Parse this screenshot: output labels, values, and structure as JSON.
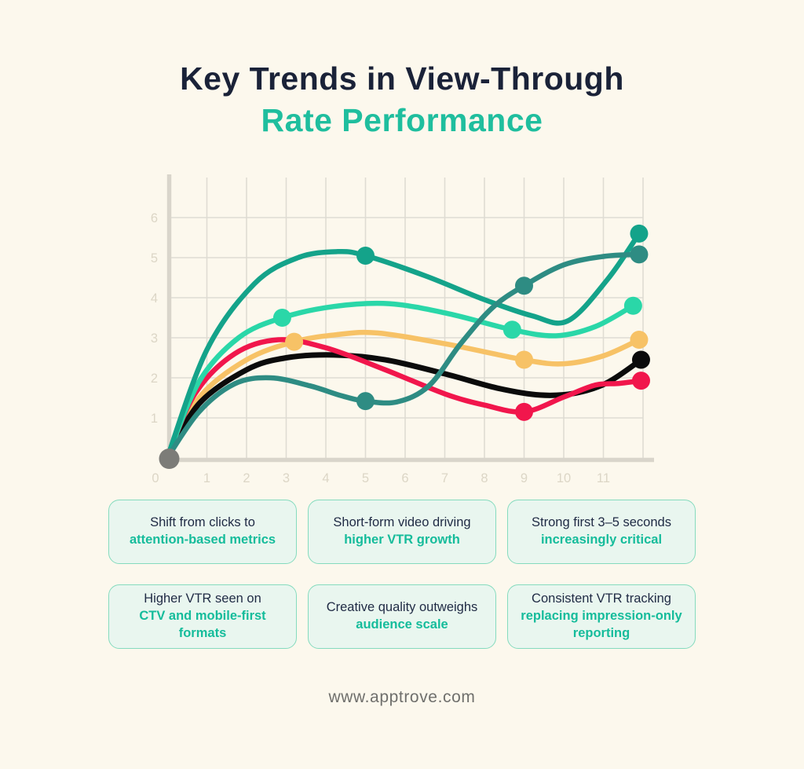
{
  "page": {
    "background": "#FCF8ED"
  },
  "title": {
    "line1": "Key Trends in View-Through",
    "line2": "Rate Performance",
    "line1_color": "#1A2238",
    "line2_color": "#1FBE9E"
  },
  "cards": [
    {
      "normal": "Shift from clicks to",
      "highlight": "attention-based metrics"
    },
    {
      "normal": "Short-form video driving",
      "highlight": "higher VTR growth"
    },
    {
      "normal": "Strong first 3–5 seconds",
      "highlight": "increasingly critical"
    },
    {
      "normal": "Higher VTR seen on",
      "highlight": "CTV and mobile-first formats"
    },
    {
      "normal": "Creative quality outweighs",
      "highlight": "audience scale"
    },
    {
      "normal": "Consistent VTR tracking",
      "highlight": "replacing impression-only reporting"
    }
  ],
  "card_style": {
    "bg": "#E9F6EF",
    "border": "#85DBBE",
    "normal_color": "#1F2A44",
    "highlight_color": "#15BC9B"
  },
  "footer": {
    "url": "www.apptrove.com",
    "color": "#6F6F6C"
  },
  "chart_data": {
    "type": "line",
    "title": "",
    "xlabel": "",
    "ylabel": "",
    "x_ticks": [
      "0",
      "1",
      "2",
      "3",
      "4",
      "5",
      "6",
      "7",
      "8",
      "9",
      "10",
      "11"
    ],
    "y_ticks": [
      "1",
      "2",
      "3",
      "4",
      "5",
      "6"
    ],
    "x_range": [
      0,
      12.2
    ],
    "y_range": [
      0,
      7
    ],
    "grid": true,
    "legend": "none",
    "axis_color": "#D9D5CB",
    "grid_color": "#DFDCD3",
    "tick_color": "#DCD6C6",
    "origin_marker": {
      "x": 0,
      "y": 0,
      "color": "#7C7C78"
    },
    "series": [
      {
        "name": "amber",
        "color": "#F7C266",
        "width": 6.5,
        "points": [
          [
            0,
            0
          ],
          [
            0.8,
            1.5
          ],
          [
            2,
            2.45
          ],
          [
            3.2,
            2.9
          ],
          [
            4.3,
            3.08
          ],
          [
            5.3,
            3.12
          ],
          [
            7,
            2.85
          ],
          [
            9,
            2.45
          ],
          [
            10,
            2.35
          ],
          [
            11,
            2.55
          ],
          [
            11.9,
            2.95
          ]
        ],
        "markers": [
          [
            3.2,
            2.9
          ],
          [
            9,
            2.45
          ],
          [
            11.9,
            2.95
          ]
        ]
      },
      {
        "name": "black",
        "color": "#0B0B0B",
        "width": 7,
        "points": [
          [
            0,
            0
          ],
          [
            0.8,
            1.35
          ],
          [
            2,
            2.2
          ],
          [
            3,
            2.5
          ],
          [
            4.2,
            2.57
          ],
          [
            5.5,
            2.45
          ],
          [
            7,
            2.1
          ],
          [
            8.3,
            1.75
          ],
          [
            9.4,
            1.57
          ],
          [
            10.3,
            1.62
          ],
          [
            11.1,
            1.88
          ],
          [
            11.95,
            2.45
          ]
        ],
        "markers": [
          [
            11.95,
            2.45
          ]
        ]
      },
      {
        "name": "crimson",
        "color": "#F1164C",
        "width": 6.5,
        "points": [
          [
            0,
            0
          ],
          [
            0.7,
            1.6
          ],
          [
            1.7,
            2.6
          ],
          [
            2.8,
            2.95
          ],
          [
            4,
            2.75
          ],
          [
            5.5,
            2.2
          ],
          [
            7,
            1.6
          ],
          [
            8,
            1.32
          ],
          [
            9,
            1.15
          ],
          [
            10,
            1.52
          ],
          [
            10.8,
            1.82
          ],
          [
            11.4,
            1.86
          ],
          [
            11.95,
            1.93
          ]
        ],
        "markers": [
          [
            9,
            1.15
          ],
          [
            11.95,
            1.93
          ]
        ]
      },
      {
        "name": "mint",
        "color": "#2AD7A8",
        "width": 6.5,
        "points": [
          [
            0,
            0
          ],
          [
            0.8,
            1.9
          ],
          [
            1.8,
            3.0
          ],
          [
            2.9,
            3.5
          ],
          [
            4.2,
            3.78
          ],
          [
            5.6,
            3.85
          ],
          [
            7.1,
            3.6
          ],
          [
            8.7,
            3.2
          ],
          [
            9.8,
            3.05
          ],
          [
            10.8,
            3.28
          ],
          [
            11.75,
            3.8
          ]
        ],
        "markers": [
          [
            2.9,
            3.5
          ],
          [
            8.7,
            3.2
          ],
          [
            11.75,
            3.8
          ]
        ]
      },
      {
        "name": "green",
        "color": "#14A38A",
        "width": 6.5,
        "points": [
          [
            0,
            0
          ],
          [
            1,
            2.7
          ],
          [
            2.2,
            4.35
          ],
          [
            3.3,
            5.0
          ],
          [
            4.3,
            5.15
          ],
          [
            5,
            5.05
          ],
          [
            6.5,
            4.55
          ],
          [
            8,
            3.95
          ],
          [
            9.2,
            3.55
          ],
          [
            10.1,
            3.42
          ],
          [
            11.1,
            4.45
          ],
          [
            11.9,
            5.6
          ]
        ],
        "markers": [
          [
            5,
            5.05
          ],
          [
            11.9,
            5.6
          ]
        ]
      },
      {
        "name": "teal",
        "color": "#2E8C83",
        "width": 6.5,
        "points": [
          [
            0,
            0
          ],
          [
            0.8,
            1.15
          ],
          [
            1.7,
            1.85
          ],
          [
            2.6,
            2.0
          ],
          [
            3.6,
            1.8
          ],
          [
            4.4,
            1.55
          ],
          [
            5,
            1.42
          ],
          [
            5.8,
            1.4
          ],
          [
            6.6,
            1.8
          ],
          [
            7.4,
            2.85
          ],
          [
            8.2,
            3.75
          ],
          [
            9,
            4.3
          ],
          [
            10,
            4.82
          ],
          [
            11,
            5.03
          ],
          [
            11.9,
            5.08
          ]
        ],
        "markers": [
          [
            5,
            1.42
          ],
          [
            9,
            4.3
          ],
          [
            11.9,
            5.08
          ]
        ]
      }
    ]
  }
}
